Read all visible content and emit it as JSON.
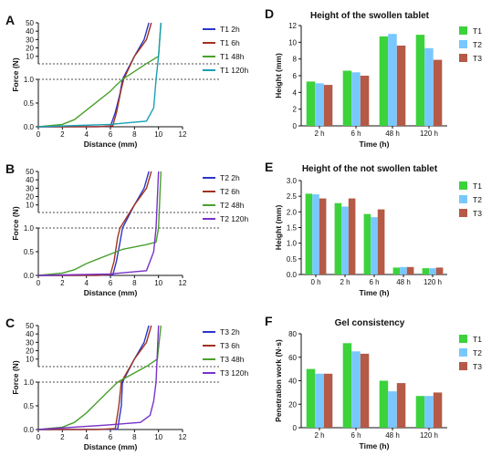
{
  "colors": {
    "t1": "#3cd23c",
    "t2": "#78c8ff",
    "t3": "#b45a46",
    "curve_2h": "#2a37c8",
    "curve_6h": "#a0321e",
    "curve_48h": "#4aa02c",
    "curve_120h": "#7832c8",
    "t1_120h": "#18a0b4"
  },
  "chart_data": [
    {
      "panel": "A",
      "type": "line",
      "xlabel": "Distance (mm)",
      "ylabel": "Force (N)",
      "xlim": [
        0,
        12
      ],
      "x_ticks": [
        "0",
        "2",
        "4",
        "6",
        "8",
        "10",
        "12"
      ],
      "y_upper_ticks": [
        "10",
        "20",
        "30",
        "40",
        "50"
      ],
      "y_lower_ticks": [
        "0.0",
        "0.5",
        "1.0"
      ],
      "broken_y_axis": true,
      "series": [
        {
          "name": "T1 2h",
          "x": [
            0,
            5,
            6.0,
            6.4,
            6.8,
            7.0,
            8.0,
            8.8,
            9.2
          ],
          "y": [
            0,
            0.001,
            0.01,
            0.3,
            0.7,
            1.0,
            10,
            30,
            50
          ]
        },
        {
          "name": "T1 6h",
          "x": [
            0,
            5,
            6.2,
            6.5,
            6.9,
            7.1,
            8.0,
            9.0,
            9.4
          ],
          "y": [
            0,
            0.002,
            0.02,
            0.3,
            0.8,
            1.0,
            10,
            30,
            50
          ]
        },
        {
          "name": "T1 48h",
          "x": [
            0,
            2,
            3,
            4,
            5,
            6,
            6.5,
            7,
            9,
            10.0,
            10.2
          ],
          "y": [
            0,
            0.05,
            0.15,
            0.35,
            0.55,
            0.75,
            0.88,
            1.0,
            1.3,
            10,
            50
          ]
        },
        {
          "name": "T1 120h",
          "x": [
            0,
            6,
            9,
            9.6,
            9.8,
            10.0,
            10.2
          ],
          "y": [
            0,
            0.05,
            0.12,
            0.4,
            1.0,
            10,
            50
          ]
        }
      ]
    },
    {
      "panel": "B",
      "type": "line",
      "xlabel": "Distance (mm)",
      "ylabel": "Force (N)",
      "xlim": [
        0,
        12
      ],
      "x_ticks": [
        "0",
        "2",
        "4",
        "6",
        "8",
        "10",
        "12"
      ],
      "y_upper_ticks": [
        "10",
        "20",
        "30",
        "40",
        "50"
      ],
      "y_lower_ticks": [
        "0.0",
        "0.5",
        "1.0"
      ],
      "broken_y_axis": true,
      "series": [
        {
          "name": "T2 2h",
          "x": [
            0,
            5,
            6.2,
            6.5,
            6.8,
            7.0,
            8.0,
            8.8,
            9.2
          ],
          "y": [
            0,
            0.001,
            0.01,
            0.3,
            0.7,
            1.0,
            10,
            30,
            50
          ]
        },
        {
          "name": "T2 6h",
          "x": [
            0,
            5,
            6.0,
            6.3,
            6.6,
            6.8,
            8.0,
            9.0,
            9.4
          ],
          "y": [
            0,
            0.002,
            0.02,
            0.3,
            0.8,
            1.0,
            10,
            30,
            50
          ]
        },
        {
          "name": "T2 48h",
          "x": [
            0,
            2,
            3,
            4,
            5,
            6,
            7,
            8,
            9,
            9.8,
            10.0,
            10.2
          ],
          "y": [
            0,
            0.05,
            0.12,
            0.25,
            0.35,
            0.45,
            0.55,
            0.6,
            0.65,
            0.7,
            1.0,
            50
          ]
        },
        {
          "name": "T2 120h",
          "x": [
            0,
            6,
            9,
            9.6,
            9.8,
            10.0
          ],
          "y": [
            0,
            0.03,
            0.1,
            0.5,
            1.0,
            50
          ]
        }
      ]
    },
    {
      "panel": "C",
      "type": "line",
      "xlabel": "Distance (mm)",
      "ylabel": "Force (N)",
      "xlim": [
        0,
        12
      ],
      "x_ticks": [
        "0",
        "2",
        "4",
        "6",
        "8",
        "10",
        "12"
      ],
      "y_upper_ticks": [
        "10",
        "20",
        "30",
        "40",
        "50"
      ],
      "y_lower_ticks": [
        "0.0",
        "0.5",
        "1.0"
      ],
      "broken_y_axis": true,
      "series": [
        {
          "name": "T3 2h",
          "x": [
            0,
            5,
            6.6,
            6.9,
            7.0,
            8.0,
            8.8,
            9.2
          ],
          "y": [
            0,
            0.001,
            0.01,
            0.5,
            1.0,
            10,
            30,
            50
          ]
        },
        {
          "name": "T3 6h",
          "x": [
            0,
            5,
            6.4,
            6.7,
            6.9,
            8.0,
            9.0,
            9.4
          ],
          "y": [
            0,
            0.002,
            0.02,
            0.5,
            1.0,
            10,
            30,
            50
          ]
        },
        {
          "name": "T3 48h",
          "x": [
            0,
            2,
            3,
            4,
            5,
            6,
            6.4,
            6.6,
            9,
            9.9,
            10.2
          ],
          "y": [
            0,
            0.05,
            0.15,
            0.35,
            0.6,
            0.85,
            0.95,
            1.0,
            1.2,
            10,
            50
          ]
        },
        {
          "name": "T3 120h",
          "x": [
            0,
            6,
            8.5,
            9.3,
            9.6,
            9.8,
            10.0
          ],
          "y": [
            0,
            0.1,
            0.15,
            0.3,
            0.6,
            1.0,
            50
          ]
        }
      ]
    },
    {
      "panel": "D",
      "type": "bar",
      "title": "Height of the swollen tablet",
      "xlabel": "Time (h)",
      "ylabel": "Height (mm)",
      "ylim": [
        0,
        12
      ],
      "y_ticks": [
        "0",
        "2",
        "4",
        "6",
        "8",
        "10",
        "12"
      ],
      "categories": [
        "2 h",
        "6 h",
        "48 h",
        "120 h"
      ],
      "series": [
        {
          "name": "T1",
          "values": [
            5.3,
            6.6,
            10.7,
            10.9
          ]
        },
        {
          "name": "T2",
          "values": [
            5.1,
            6.4,
            11.0,
            9.3
          ]
        },
        {
          "name": "T3",
          "values": [
            4.9,
            6.0,
            9.6,
            7.9
          ]
        }
      ]
    },
    {
      "panel": "E",
      "type": "bar",
      "title": "Height of the not swollen tablet",
      "xlabel": "Time (h)",
      "ylabel": "Height (mm)",
      "ylim": [
        0,
        3.0
      ],
      "y_ticks": [
        "0.0",
        "0.5",
        "1.0",
        "1.5",
        "2.0",
        "2.5",
        "3.0"
      ],
      "categories": [
        "0 h",
        "2 h",
        "6 h",
        "48 h",
        "120 h"
      ],
      "series": [
        {
          "name": "T1",
          "values": [
            2.58,
            2.28,
            1.93,
            0.22,
            0.2
          ]
        },
        {
          "name": "T2",
          "values": [
            2.56,
            2.17,
            1.83,
            0.24,
            0.2
          ]
        },
        {
          "name": "T3",
          "values": [
            2.43,
            2.43,
            2.08,
            0.24,
            0.22
          ]
        }
      ]
    },
    {
      "panel": "F",
      "type": "bar",
      "title": "Gel consistency",
      "xlabel": "Time (h)",
      "ylabel": "Penetration work (N·s)",
      "ylim": [
        0,
        80
      ],
      "y_ticks": [
        "0",
        "20",
        "40",
        "60",
        "80"
      ],
      "categories": [
        "2 h",
        "6 h",
        "48 h",
        "120 h"
      ],
      "series": [
        {
          "name": "T1",
          "values": [
            50,
            72,
            40,
            27
          ]
        },
        {
          "name": "T2",
          "values": [
            46,
            65,
            31,
            27
          ]
        },
        {
          "name": "T3",
          "values": [
            46,
            63,
            38,
            30
          ]
        }
      ]
    }
  ]
}
